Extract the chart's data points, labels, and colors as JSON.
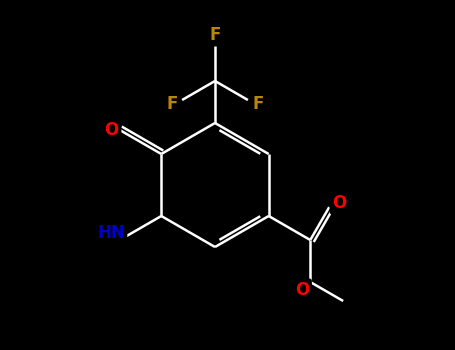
{
  "background_color": "#000000",
  "bond_color": "#ffffff",
  "atom_colors": {
    "O": "#ff0000",
    "N": "#0000cc",
    "F": "#b8860b",
    "C": "#ffffff"
  },
  "figsize": [
    4.55,
    3.5
  ],
  "dpi": 100
}
